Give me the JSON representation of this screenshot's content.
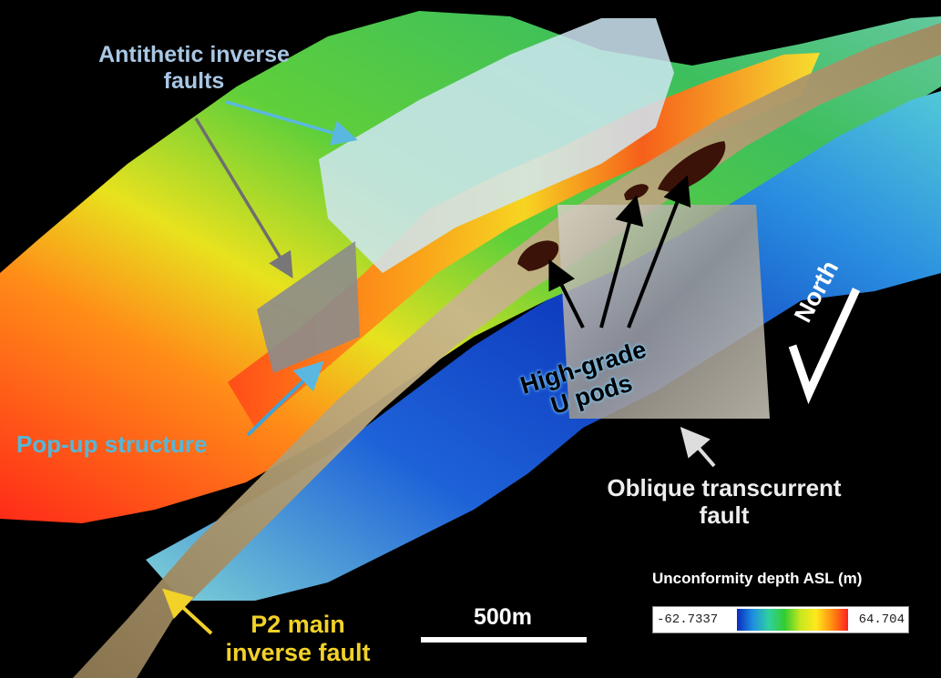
{
  "labels": {
    "antithetic": [
      "Antithetic inverse",
      "faults"
    ],
    "popup": "Pop-up structure",
    "pods": [
      "High-grade",
      "U pods"
    ],
    "oblique": [
      "Oblique transcurrent",
      "fault"
    ],
    "p2": [
      "P2 main",
      "inverse fault"
    ],
    "north": "North",
    "scale": "500m"
  },
  "legend": {
    "title": "Unconformity depth ASL (m)",
    "min": "-62.7337",
    "max": "64.704"
  },
  "colors": {
    "background": "#000000",
    "deep": "#0a2bbf",
    "shallow": "#ff2020",
    "fault_plane": "#c6b48a",
    "antithetic_label": "#a9c7e4",
    "popup_label": "#58b6d6",
    "p2_label": "#f2d129"
  }
}
